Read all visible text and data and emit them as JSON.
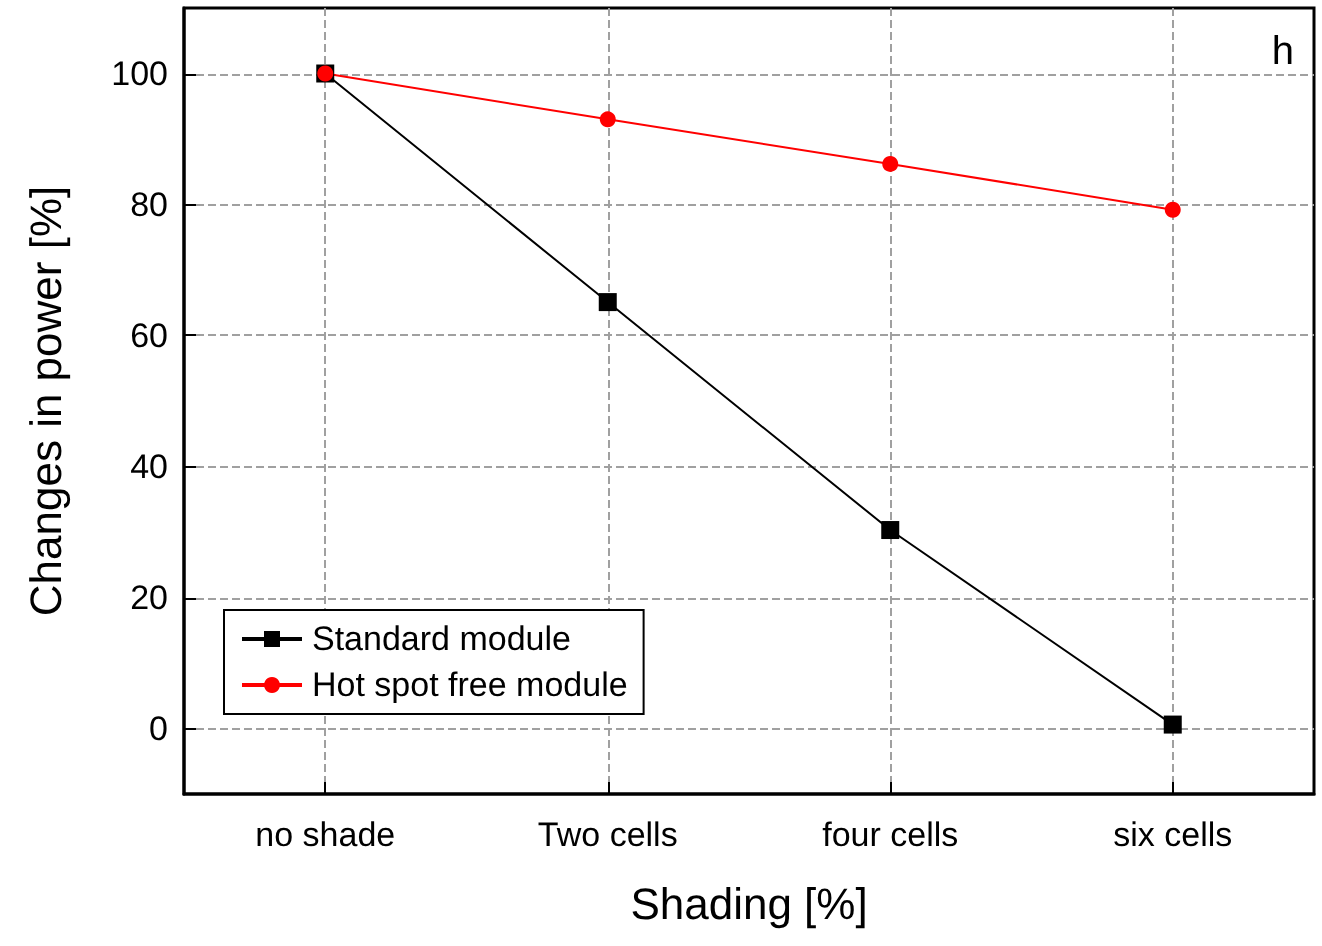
{
  "chart_data": {
    "type": "line",
    "xlabel": "Shading [%]",
    "ylabel": "Changes in power [%]",
    "categories": [
      "no shade",
      "Two cells",
      "four cells",
      "six cells"
    ],
    "series": [
      {
        "name": "Standard module",
        "color": "#000000",
        "marker": "square",
        "values": [
          100,
          65.1,
          30.3,
          0.6
        ]
      },
      {
        "name": "Hot spot free module",
        "color": "#ff0000",
        "marker": "circle",
        "values": [
          100,
          93.0,
          86.2,
          79.2
        ]
      }
    ],
    "ylim": [
      -10,
      110
    ],
    "yticks": [
      0,
      20,
      40,
      60,
      80,
      100
    ],
    "grid": true,
    "legend": "bottom left",
    "line_style": "solid",
    "annotations": [
      "h"
    ]
  }
}
